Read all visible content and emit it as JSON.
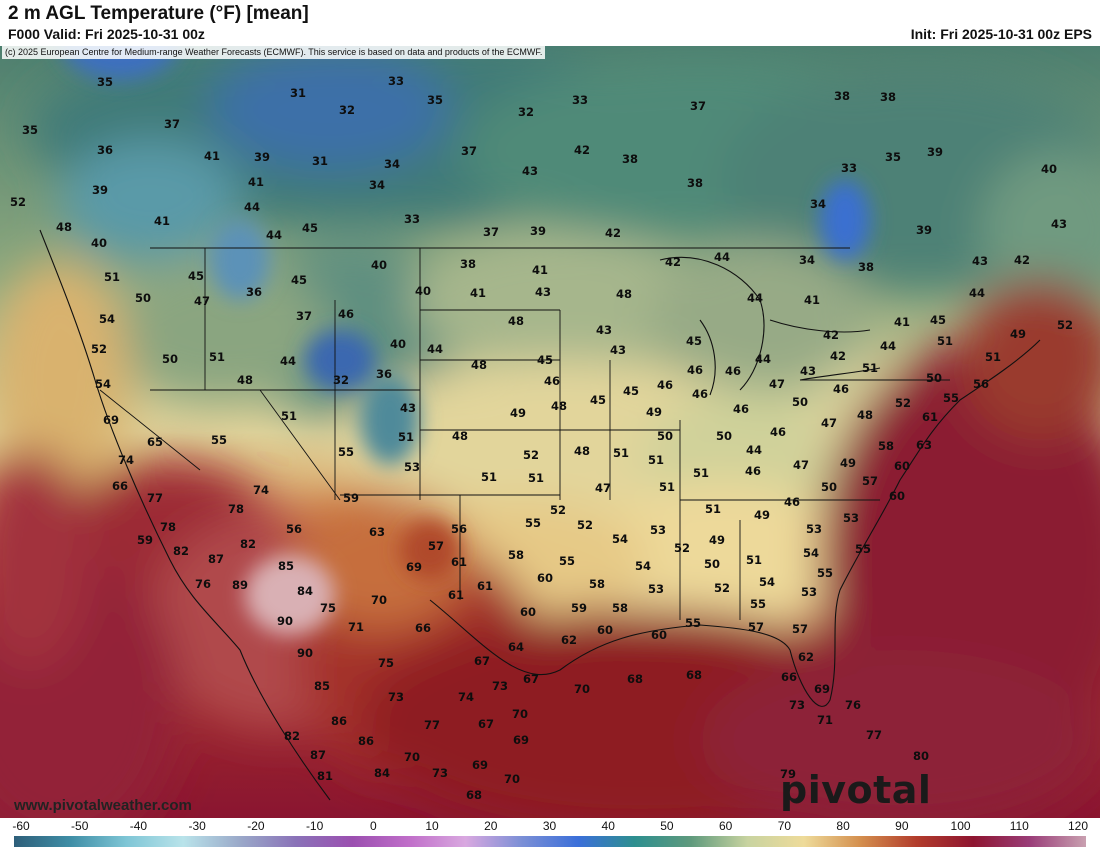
{
  "title": "2 m AGL Temperature (°F) [mean]",
  "valid": "F000 Valid: Fri 2025-10-31 00z",
  "init": "Init: Fri 2025-10-31 00z EPS",
  "copyright": "(c) 2025 European Centre for Medium-range Weather Forecasts (ECMWF). This service is based on data and products of the ECMWF.",
  "footer_url": "www.pivotalweather.com",
  "brand": "pivotal weather",
  "colorbar": {
    "ticks": [
      "-60",
      "-50",
      "-40",
      "-30",
      "-20",
      "-10",
      "0",
      "10",
      "20",
      "30",
      "40",
      "50",
      "60",
      "70",
      "80",
      "90",
      "100",
      "110",
      "120"
    ],
    "colors": [
      "#2e5f7a",
      "#3f8ea6",
      "#7fc6d6",
      "#b9e3ea",
      "#9aa9c9",
      "#8a72b8",
      "#9b4fb0",
      "#c06ec9",
      "#d9a8e0",
      "#7b8fd6",
      "#3b6fd9",
      "#2d8f8f",
      "#5f9a7d",
      "#c8d3a0",
      "#eedb9a",
      "#d48f4e",
      "#b23c2c",
      "#8e1530",
      "#9a3d78",
      "#c9a0b0"
    ]
  },
  "points": [
    [
      "35",
      105,
      82
    ],
    [
      "33",
      396,
      81
    ],
    [
      "31",
      298,
      93
    ],
    [
      "32",
      347,
      110
    ],
    [
      "35",
      435,
      100
    ],
    [
      "33",
      580,
      100
    ],
    [
      "32",
      526,
      112
    ],
    [
      "37",
      698,
      106
    ],
    [
      "38",
      842,
      96
    ],
    [
      "38",
      888,
      97
    ],
    [
      "35",
      30,
      130
    ],
    [
      "37",
      172,
      124
    ],
    [
      "36",
      105,
      150
    ],
    [
      "41",
      212,
      156
    ],
    [
      "39",
      262,
      157
    ],
    [
      "31",
      320,
      161
    ],
    [
      "34",
      392,
      164
    ],
    [
      "37",
      469,
      151
    ],
    [
      "42",
      582,
      150
    ],
    [
      "38",
      630,
      159
    ],
    [
      "33",
      849,
      168
    ],
    [
      "35",
      893,
      157
    ],
    [
      "39",
      935,
      152
    ],
    [
      "40",
      1049,
      169
    ],
    [
      "39",
      100,
      190
    ],
    [
      "41",
      256,
      182
    ],
    [
      "34",
      377,
      185
    ],
    [
      "43",
      530,
      171
    ],
    [
      "38",
      695,
      183
    ],
    [
      "52",
      18,
      202
    ],
    [
      "41",
      162,
      221
    ],
    [
      "44",
      252,
      207
    ],
    [
      "33",
      412,
      219
    ],
    [
      "34",
      818,
      204
    ],
    [
      "48",
      64,
      227
    ],
    [
      "44",
      274,
      235
    ],
    [
      "45",
      310,
      228
    ],
    [
      "37",
      491,
      232
    ],
    [
      "39",
      538,
      231
    ],
    [
      "42",
      613,
      233
    ],
    [
      "39",
      924,
      230
    ],
    [
      "43",
      1059,
      224
    ],
    [
      "40",
      99,
      243
    ],
    [
      "38",
      468,
      264
    ],
    [
      "41",
      540,
      270
    ],
    [
      "42",
      673,
      262
    ],
    [
      "44",
      722,
      257
    ],
    [
      "34",
      807,
      260
    ],
    [
      "38",
      866,
      267
    ],
    [
      "43",
      980,
      261
    ],
    [
      "42",
      1022,
      260
    ],
    [
      "51",
      112,
      277
    ],
    [
      "45",
      196,
      276
    ],
    [
      "45",
      299,
      280
    ],
    [
      "40",
      379,
      265
    ],
    [
      "40",
      423,
      291
    ],
    [
      "41",
      478,
      293
    ],
    [
      "43",
      543,
      292
    ],
    [
      "48",
      624,
      294
    ],
    [
      "44",
      755,
      298
    ],
    [
      "41",
      812,
      300
    ],
    [
      "44",
      977,
      293
    ],
    [
      "50",
      143,
      298
    ],
    [
      "47",
      202,
      301
    ],
    [
      "36",
      254,
      292
    ],
    [
      "37",
      304,
      316
    ],
    [
      "46",
      346,
      314
    ],
    [
      "54",
      107,
      319
    ],
    [
      "52",
      99,
      349
    ],
    [
      "48",
      516,
      321
    ],
    [
      "43",
      604,
      330
    ],
    [
      "45",
      694,
      341
    ],
    [
      "42",
      831,
      335
    ],
    [
      "41",
      902,
      322
    ],
    [
      "45",
      938,
      320
    ],
    [
      "49",
      1018,
      334
    ],
    [
      "52",
      1065,
      325
    ],
    [
      "50",
      170,
      359
    ],
    [
      "51",
      217,
      357
    ],
    [
      "44",
      288,
      361
    ],
    [
      "40",
      398,
      344
    ],
    [
      "44",
      435,
      349
    ],
    [
      "48",
      479,
      365
    ],
    [
      "45",
      545,
      360
    ],
    [
      "43",
      618,
      350
    ],
    [
      "46",
      695,
      370
    ],
    [
      "46",
      733,
      371
    ],
    [
      "44",
      763,
      359
    ],
    [
      "42",
      838,
      356
    ],
    [
      "44",
      888,
      346
    ],
    [
      "51",
      945,
      341
    ],
    [
      "51",
      993,
      357
    ],
    [
      "54",
      103,
      384
    ],
    [
      "48",
      245,
      380
    ],
    [
      "32",
      341,
      380
    ],
    [
      "36",
      384,
      374
    ],
    [
      "46",
      552,
      381
    ],
    [
      "45",
      631,
      391
    ],
    [
      "46",
      665,
      385
    ],
    [
      "47",
      777,
      384
    ],
    [
      "43",
      808,
      371
    ],
    [
      "51",
      870,
      368
    ],
    [
      "50",
      934,
      378
    ],
    [
      "56",
      981,
      384
    ],
    [
      "51",
      289,
      416
    ],
    [
      "43",
      408,
      408
    ],
    [
      "49",
      518,
      413
    ],
    [
      "48",
      559,
      406
    ],
    [
      "45",
      598,
      400
    ],
    [
      "49",
      654,
      412
    ],
    [
      "46",
      700,
      394
    ],
    [
      "46",
      741,
      409
    ],
    [
      "50",
      800,
      402
    ],
    [
      "46",
      841,
      389
    ],
    [
      "48",
      865,
      415
    ],
    [
      "52",
      903,
      403
    ],
    [
      "55",
      951,
      398
    ],
    [
      "69",
      111,
      420
    ],
    [
      "65",
      155,
      442
    ],
    [
      "55",
      219,
      440
    ],
    [
      "51",
      406,
      437
    ],
    [
      "48",
      460,
      436
    ],
    [
      "50",
      665,
      436
    ],
    [
      "50",
      724,
      436
    ],
    [
      "46",
      778,
      432
    ],
    [
      "47",
      829,
      423
    ],
    [
      "61",
      930,
      417
    ],
    [
      "74",
      126,
      460
    ],
    [
      "55",
      346,
      452
    ],
    [
      "53",
      412,
      467
    ],
    [
      "52",
      531,
      455
    ],
    [
      "48",
      582,
      451
    ],
    [
      "51",
      621,
      453
    ],
    [
      "51",
      656,
      460
    ],
    [
      "44",
      754,
      450
    ],
    [
      "46",
      753,
      471
    ],
    [
      "47",
      801,
      465
    ],
    [
      "49",
      848,
      463
    ],
    [
      "58",
      886,
      446
    ],
    [
      "63",
      924,
      445
    ],
    [
      "66",
      120,
      486
    ],
    [
      "51",
      489,
      477
    ],
    [
      "51",
      536,
      478
    ],
    [
      "51",
      701,
      473
    ],
    [
      "60",
      902,
      466
    ],
    [
      "77",
      155,
      498
    ],
    [
      "74",
      261,
      490
    ],
    [
      "59",
      351,
      498
    ],
    [
      "47",
      603,
      488
    ],
    [
      "51",
      667,
      487
    ],
    [
      "50",
      829,
      487
    ],
    [
      "57",
      870,
      481
    ],
    [
      "60",
      897,
      496
    ],
    [
      "78",
      236,
      509
    ],
    [
      "56",
      294,
      529
    ],
    [
      "63",
      377,
      532
    ],
    [
      "56",
      459,
      529
    ],
    [
      "55",
      533,
      523
    ],
    [
      "52",
      558,
      510
    ],
    [
      "52",
      585,
      525
    ],
    [
      "51",
      713,
      509
    ],
    [
      "49",
      762,
      515
    ],
    [
      "46",
      792,
      502
    ],
    [
      "53",
      814,
      529
    ],
    [
      "53",
      851,
      518
    ],
    [
      "78",
      168,
      527
    ],
    [
      "59",
      145,
      540
    ],
    [
      "82",
      181,
      551
    ],
    [
      "87",
      216,
      559
    ],
    [
      "82",
      248,
      544
    ],
    [
      "57",
      436,
      546
    ],
    [
      "53",
      658,
      530
    ],
    [
      "54",
      620,
      539
    ],
    [
      "52",
      682,
      548
    ],
    [
      "49",
      717,
      540
    ],
    [
      "51",
      754,
      560
    ],
    [
      "54",
      811,
      553
    ],
    [
      "55",
      863,
      549
    ],
    [
      "85",
      286,
      566
    ],
    [
      "69",
      414,
      567
    ],
    [
      "61",
      459,
      562
    ],
    [
      "58",
      516,
      555
    ],
    [
      "55",
      567,
      561
    ],
    [
      "50",
      712,
      564
    ],
    [
      "55",
      825,
      573
    ],
    [
      "76",
      203,
      584
    ],
    [
      "89",
      240,
      585
    ],
    [
      "84",
      305,
      591
    ],
    [
      "61",
      485,
      586
    ],
    [
      "60",
      545,
      578
    ],
    [
      "58",
      597,
      584
    ],
    [
      "54",
      643,
      566
    ],
    [
      "53",
      656,
      589
    ],
    [
      "52",
      722,
      588
    ],
    [
      "54",
      767,
      582
    ],
    [
      "55",
      758,
      604
    ],
    [
      "53",
      809,
      592
    ],
    [
      "75",
      328,
      608
    ],
    [
      "70",
      379,
      600
    ],
    [
      "61",
      456,
      595
    ],
    [
      "59",
      579,
      608
    ],
    [
      "58",
      620,
      608
    ],
    [
      "60",
      528,
      612
    ],
    [
      "57",
      756,
      627
    ],
    [
      "90",
      285,
      621
    ],
    [
      "71",
      356,
      627
    ],
    [
      "66",
      423,
      628
    ],
    [
      "60",
      605,
      630
    ],
    [
      "62",
      569,
      640
    ],
    [
      "60",
      659,
      635
    ],
    [
      "55",
      693,
      623
    ],
    [
      "57",
      800,
      629
    ],
    [
      "90",
      305,
      653
    ],
    [
      "64",
      516,
      647
    ],
    [
      "75",
      386,
      663
    ],
    [
      "67",
      482,
      661
    ],
    [
      "62",
      806,
      657
    ],
    [
      "70",
      582,
      689
    ],
    [
      "68",
      635,
      679
    ],
    [
      "68",
      694,
      675
    ],
    [
      "66",
      789,
      677
    ],
    [
      "69",
      822,
      689
    ],
    [
      "85",
      322,
      686
    ],
    [
      "73",
      396,
      697
    ],
    [
      "74",
      466,
      697
    ],
    [
      "73",
      500,
      686
    ],
    [
      "67",
      531,
      679
    ],
    [
      "73",
      797,
      705
    ],
    [
      "76",
      853,
      705
    ],
    [
      "86",
      339,
      721
    ],
    [
      "77",
      432,
      725
    ],
    [
      "67",
      486,
      724
    ],
    [
      "70",
      520,
      714
    ],
    [
      "71",
      825,
      720
    ],
    [
      "82",
      292,
      736
    ],
    [
      "86",
      366,
      741
    ],
    [
      "69",
      521,
      740
    ],
    [
      "77",
      874,
      735
    ],
    [
      "87",
      318,
      755
    ],
    [
      "70",
      412,
      757
    ],
    [
      "69",
      480,
      765
    ],
    [
      "80",
      921,
      756
    ],
    [
      "81",
      325,
      776
    ],
    [
      "84",
      382,
      773
    ],
    [
      "73",
      440,
      773
    ],
    [
      "70",
      512,
      779
    ],
    [
      "79",
      788,
      774
    ],
    [
      "68",
      474,
      795
    ]
  ]
}
